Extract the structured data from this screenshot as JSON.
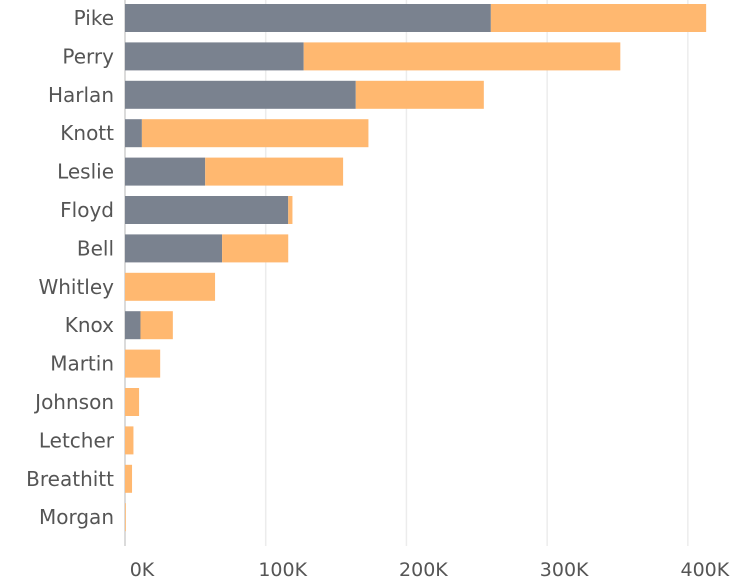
{
  "chart_data": {
    "type": "bar",
    "orientation": "horizontal",
    "stacked": true,
    "categories": [
      "Pike",
      "Perry",
      "Harlan",
      "Knott",
      "Leslie",
      "Floyd",
      "Bell",
      "Whitley",
      "Knox",
      "Martin",
      "Johnson",
      "Letcher",
      "Breathitt",
      "Morgan"
    ],
    "series": [
      {
        "color": "#7a828f",
        "values": [
          260000,
          127000,
          164000,
          12000,
          57000,
          116000,
          69000,
          0,
          11000,
          0,
          0,
          0,
          0,
          0
        ]
      },
      {
        "color": "#ffb870",
        "values": [
          153000,
          225000,
          91000,
          161000,
          98000,
          3000,
          47000,
          64000,
          23000,
          25000,
          10000,
          6000,
          5000,
          500
        ]
      }
    ],
    "xlim": [
      0,
      420000
    ],
    "xticks": [
      0,
      100000,
      200000,
      300000,
      400000
    ],
    "xtick_labels": [
      "0K",
      "100K",
      "200K",
      "300K",
      "400K"
    ],
    "xlabel": "",
    "ylabel": "",
    "title": "",
    "grid": "vertical",
    "legend": "none"
  }
}
